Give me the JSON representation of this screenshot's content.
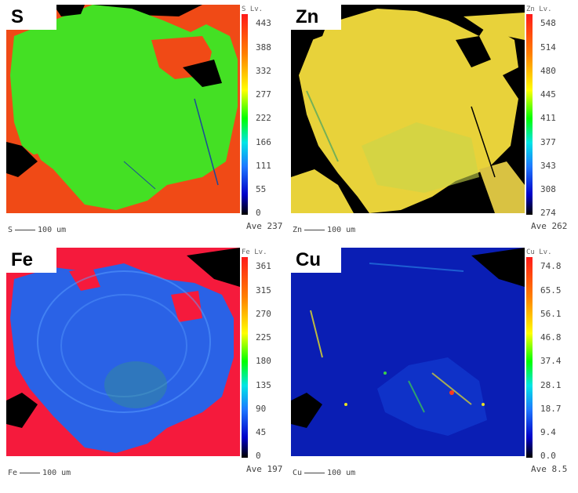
{
  "panels": [
    {
      "element": "S",
      "colorbar_title": "S Lv.",
      "ticks": [
        "443",
        "388",
        "332",
        "277",
        "222",
        "166",
        "111",
        "55",
        "0"
      ],
      "average": "Ave 237",
      "scale_element": "S",
      "scale_label": "100 um"
    },
    {
      "element": "Zn",
      "colorbar_title": "Zn Lv.",
      "ticks": [
        "548",
        "514",
        "480",
        "445",
        "411",
        "377",
        "343",
        "308",
        "274"
      ],
      "average": "Ave 262",
      "scale_element": "Zn",
      "scale_label": "100 um"
    },
    {
      "element": "Fe",
      "colorbar_title": "Fe Lv.",
      "ticks": [
        "361",
        "315",
        "270",
        "225",
        "180",
        "135",
        "90",
        "45",
        "0"
      ],
      "average": "Ave 197",
      "scale_element": "Fe",
      "scale_label": "100 um"
    },
    {
      "element": "Cu",
      "colorbar_title": "Cu Lv.",
      "ticks": [
        "74.8",
        "65.5",
        "56.1",
        "46.8",
        "37.4",
        "28.1",
        "18.7",
        "9.4",
        "0.0"
      ],
      "average": "Ave 8.5",
      "scale_element": "Cu",
      "scale_label": "100 um"
    }
  ],
  "colors": {
    "s_matrix": "#44e024",
    "s_surround": "#f04a16",
    "zn_matrix": "#e8d23a",
    "fe_matrix": "#2a62e6",
    "fe_surround": "#f51a3c",
    "cu_matrix": "#0a1eb4",
    "background": "#000000"
  }
}
